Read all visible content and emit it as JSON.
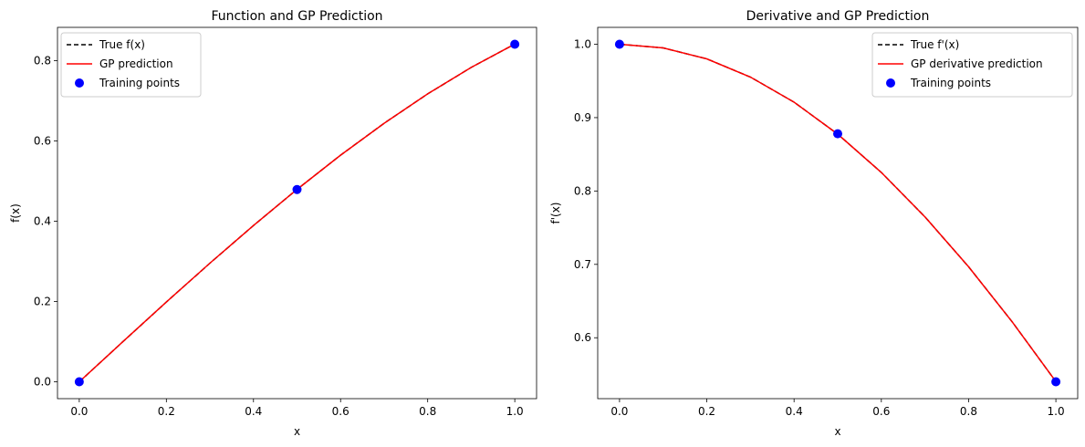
{
  "chart_data": [
    {
      "type": "line",
      "title": "Function and GP Prediction",
      "xlabel": "x",
      "ylabel": "f(x)",
      "xlim": [
        -0.05,
        1.05
      ],
      "ylim": [
        -0.042,
        0.883
      ],
      "xticks": [
        0.0,
        0.2,
        0.4,
        0.6,
        0.8,
        1.0
      ],
      "xtick_labels": [
        "0.0",
        "0.2",
        "0.4",
        "0.6",
        "0.8",
        "1.0"
      ],
      "yticks": [
        0.0,
        0.2,
        0.4,
        0.6,
        0.8
      ],
      "ytick_labels": [
        "0.0",
        "0.2",
        "0.4",
        "0.6",
        "0.8"
      ],
      "grid": false,
      "legend_position": "top-left",
      "series": [
        {
          "name": "True f(x)",
          "kind": "line",
          "style": "dashed",
          "color": "#000000",
          "x": [
            0,
            0.1,
            0.2,
            0.3,
            0.4,
            0.5,
            0.6,
            0.7,
            0.8,
            0.9,
            1.0
          ],
          "y": [
            0,
            0.0998,
            0.1987,
            0.2955,
            0.3894,
            0.4794,
            0.5646,
            0.6442,
            0.7174,
            0.7833,
            0.8415
          ]
        },
        {
          "name": "GP prediction",
          "kind": "line",
          "style": "solid",
          "color": "#ff0000",
          "x": [
            0,
            0.1,
            0.2,
            0.3,
            0.4,
            0.5,
            0.6,
            0.7,
            0.8,
            0.9,
            1.0
          ],
          "y": [
            0,
            0.0998,
            0.1987,
            0.2955,
            0.3894,
            0.4794,
            0.5646,
            0.6442,
            0.7174,
            0.7833,
            0.8415
          ]
        },
        {
          "name": "Training points",
          "kind": "scatter",
          "color": "#0000ff",
          "x": [
            0.0,
            0.5,
            1.0
          ],
          "y": [
            0.0,
            0.479,
            0.841
          ]
        }
      ]
    },
    {
      "type": "line",
      "title": "Derivative and GP Prediction",
      "xlabel": "x",
      "ylabel": "f'(x)",
      "xlim": [
        -0.05,
        1.05
      ],
      "ylim": [
        0.517,
        1.023
      ],
      "xticks": [
        0.0,
        0.2,
        0.4,
        0.6,
        0.8,
        1.0
      ],
      "xtick_labels": [
        "0.0",
        "0.2",
        "0.4",
        "0.6",
        "0.8",
        "1.0"
      ],
      "yticks": [
        0.6,
        0.7,
        0.8,
        0.9,
        1.0
      ],
      "ytick_labels": [
        "0.6",
        "0.7",
        "0.8",
        "0.9",
        "1.0"
      ],
      "grid": false,
      "legend_position": "top-right",
      "series": [
        {
          "name": "True f'(x)",
          "kind": "line",
          "style": "dashed",
          "color": "#000000",
          "x": [
            0,
            0.1,
            0.2,
            0.3,
            0.4,
            0.5,
            0.6,
            0.7,
            0.8,
            0.9,
            1.0
          ],
          "y": [
            1.0,
            0.995,
            0.9801,
            0.9553,
            0.9211,
            0.8776,
            0.8253,
            0.7648,
            0.6967,
            0.6216,
            0.5403
          ]
        },
        {
          "name": "GP derivative prediction",
          "kind": "line",
          "style": "solid",
          "color": "#ff0000",
          "x": [
            0,
            0.1,
            0.2,
            0.3,
            0.4,
            0.5,
            0.6,
            0.7,
            0.8,
            0.9,
            1.0
          ],
          "y": [
            1.0,
            0.995,
            0.9801,
            0.9553,
            0.9211,
            0.8776,
            0.8253,
            0.7648,
            0.6967,
            0.6216,
            0.5403
          ]
        },
        {
          "name": "Training points",
          "kind": "scatter",
          "color": "#0000ff",
          "x": [
            0.0,
            0.5,
            1.0
          ],
          "y": [
            1.0,
            0.878,
            0.54
          ]
        }
      ]
    }
  ]
}
